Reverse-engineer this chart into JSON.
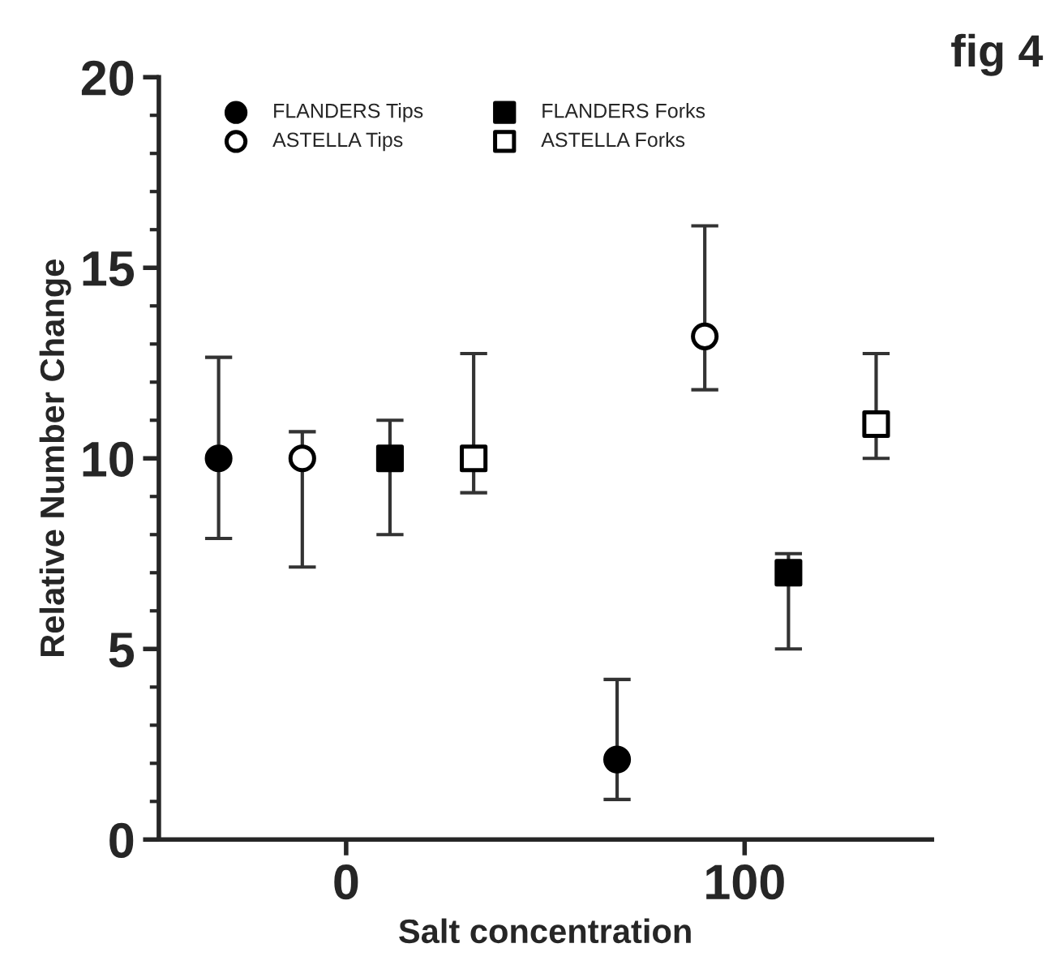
{
  "chart_data": {
    "type": "scatter",
    "xlabel": "Salt concentration",
    "ylabel": "Relative Number Change",
    "annotations": [
      "fig 4"
    ],
    "series": [
      {
        "name": "FLANDERS Tips",
        "color": "#000000",
        "marker": "circle",
        "x": [
          -32,
          68
        ],
        "values": [
          10,
          2.1
        ],
        "errors": [
          [
            7.9,
            12.65
          ],
          [
            1.05,
            4.2
          ]
        ]
      },
      {
        "name": "ASTELLA Tips",
        "color": "#ffffff",
        "marker": "circle",
        "x": [
          -11,
          90
        ],
        "values": [
          10,
          13.2
        ],
        "errors": [
          [
            7.15,
            10.7
          ],
          [
            11.8,
            16.1
          ]
        ]
      },
      {
        "name": "FLANDERS Forks",
        "color": "#000000",
        "marker": "square",
        "x": [
          11,
          111
        ],
        "values": [
          10,
          7.0
        ],
        "errors": [
          [
            8.0,
            11.0
          ],
          [
            5.0,
            7.5
          ]
        ]
      },
      {
        "name": "ASTELLA Forks",
        "color": "#ffffff",
        "marker": "square",
        "x": [
          32,
          133
        ],
        "values": [
          10,
          10.9
        ],
        "errors": [
          [
            9.1,
            12.75
          ],
          [
            10.0,
            12.75
          ]
        ]
      }
    ],
    "xlim": [
      -47,
      147
    ],
    "xticks": [
      0,
      100
    ],
    "ylim": [
      0,
      20
    ],
    "yticks": [
      0,
      5,
      10,
      15,
      20
    ],
    "grid": false,
    "legend": "top left"
  }
}
